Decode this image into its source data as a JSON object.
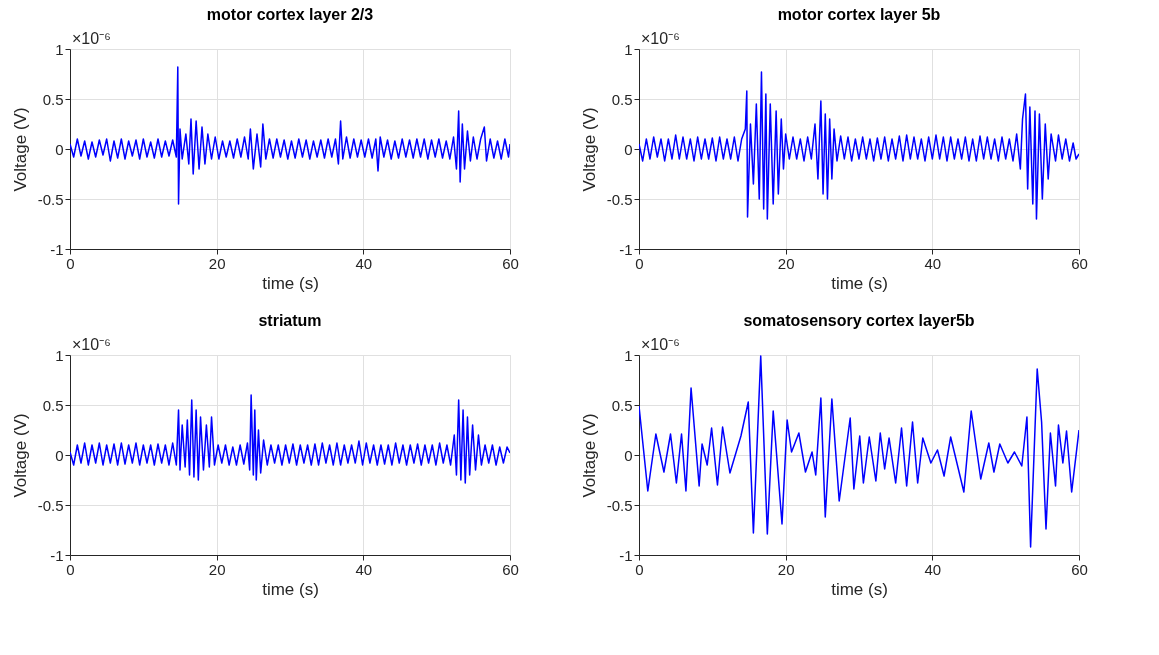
{
  "chart_data": [
    {
      "type": "line",
      "title": "motor cortex layer 2/3",
      "xlabel": "time (s)",
      "ylabel": "Voltage (V)",
      "annotations": [
        "×10⁻⁶"
      ],
      "grid": true,
      "xlim": [
        0,
        60
      ],
      "ylim": [
        -1,
        1
      ],
      "xticks": [
        0,
        20,
        40,
        60
      ],
      "yticks": [
        -1,
        -0.5,
        0,
        0.5,
        1
      ],
      "x": [
        0,
        0.5,
        1,
        1.5,
        2,
        2.5,
        3,
        3.5,
        4,
        4.5,
        5,
        5.5,
        6,
        6.5,
        7,
        7.5,
        8,
        8.5,
        9,
        9.5,
        10,
        10.5,
        11,
        11.5,
        12,
        12.5,
        13,
        13.5,
        14,
        14.5,
        14.7,
        14.8,
        15,
        15.3,
        15.8,
        16.2,
        16.5,
        16.8,
        17.2,
        17.6,
        18,
        18.4,
        18.8,
        19.3,
        19.8,
        20.3,
        20.8,
        21.3,
        21.8,
        22.3,
        22.8,
        23.3,
        23.8,
        24.3,
        24.6,
        25,
        25.5,
        26,
        26.3,
        26.7,
        27.2,
        27.7,
        28.2,
        28.7,
        29.2,
        29.7,
        30.2,
        30.7,
        31.2,
        31.7,
        32.2,
        32.7,
        33.2,
        33.7,
        34.2,
        34.7,
        35.2,
        35.7,
        36.2,
        36.6,
        36.9,
        37.2,
        37.7,
        38.2,
        38.7,
        39.2,
        39.7,
        40.2,
        40.7,
        41.2,
        41.7,
        42,
        42.3,
        42.8,
        43.3,
        43.8,
        44.3,
        44.8,
        45.3,
        45.8,
        46.3,
        46.8,
        47.3,
        47.8,
        48.3,
        48.8,
        49.3,
        49.8,
        50.3,
        50.8,
        51.3,
        51.8,
        52.3,
        52.7,
        53,
        53.2,
        53.5,
        53.8,
        54.2,
        54.6,
        55,
        55.5,
        56,
        56.5,
        56.8,
        57.3,
        57.8,
        58.3,
        58.8,
        59.3,
        59.8,
        60
      ],
      "series": [
        {
          "color": "#0000ff",
          "values": [
            0.05,
            -0.08,
            0.1,
            -0.07,
            0.08,
            -0.1,
            0.07,
            -0.08,
            0.09,
            -0.06,
            0.1,
            -0.12,
            0.08,
            -0.09,
            0.1,
            -0.1,
            0.08,
            -0.07,
            0.09,
            -0.1,
            0.1,
            -0.08,
            0.07,
            -0.09,
            0.1,
            -0.08,
            0.08,
            -0.07,
            0.09,
            -0.08,
            0.82,
            -0.55,
            0.2,
            -0.1,
            0.15,
            -0.15,
            0.3,
            -0.25,
            0.28,
            -0.2,
            0.22,
            -0.15,
            0.15,
            -0.1,
            0.12,
            -0.1,
            0.08,
            -0.08,
            0.08,
            -0.09,
            0.1,
            -0.08,
            0.12,
            -0.1,
            0.2,
            -0.2,
            0.15,
            -0.18,
            0.25,
            -0.1,
            0.1,
            -0.09,
            0.1,
            -0.08,
            0.09,
            -0.1,
            0.08,
            -0.09,
            0.1,
            -0.08,
            0.09,
            -0.1,
            0.08,
            -0.08,
            0.09,
            -0.09,
            0.1,
            -0.08,
            0.1,
            -0.15,
            0.28,
            -0.1,
            0.12,
            -0.09,
            0.1,
            -0.08,
            0.09,
            -0.08,
            0.1,
            -0.09,
            0.1,
            -0.22,
            0.12,
            -0.08,
            0.09,
            -0.1,
            0.08,
            -0.09,
            0.1,
            -0.08,
            0.09,
            -0.09,
            0.1,
            -0.08,
            0.1,
            -0.1,
            0.09,
            -0.08,
            0.1,
            -0.09,
            0.08,
            -0.1,
            0.12,
            -0.2,
            0.38,
            -0.33,
            0.25,
            -0.2,
            0.18,
            -0.12,
            0.12,
            -0.1,
            0.1,
            0.22,
            -0.12,
            0.1,
            -0.09,
            0.08,
            -0.1,
            0.1,
            -0.08,
            0.05
          ]
        }
      ]
    },
    {
      "type": "line",
      "title": "motor cortex layer 5b",
      "xlabel": "time (s)",
      "ylabel": "Voltage (V)",
      "annotations": [
        "×10⁻⁶"
      ],
      "grid": true,
      "xlim": [
        0,
        60
      ],
      "ylim": [
        -1,
        1
      ],
      "xticks": [
        0,
        20,
        40,
        60
      ],
      "yticks": [
        -1,
        -0.5,
        0,
        0.5,
        1
      ],
      "x": [
        0,
        0.5,
        1,
        1.5,
        2,
        2.5,
        3,
        3.5,
        4,
        4.5,
        5,
        5.5,
        6,
        6.5,
        7,
        7.5,
        8,
        8.5,
        9,
        9.5,
        10,
        10.5,
        11,
        11.5,
        12,
        12.5,
        13,
        13.5,
        14,
        14.5,
        14.7,
        14.8,
        15.2,
        15.6,
        16,
        16.4,
        16.7,
        17,
        17.3,
        17.5,
        17.9,
        18.3,
        18.7,
        19,
        19.4,
        19.7,
        20,
        20.5,
        21,
        21.5,
        22,
        22.5,
        23,
        23.5,
        24,
        24.4,
        24.8,
        25.1,
        25.4,
        25.7,
        26,
        26.3,
        26.6,
        27,
        27.5,
        28,
        28.5,
        29,
        29.5,
        30,
        30.5,
        31,
        31.5,
        32,
        32.5,
        33,
        33.5,
        34,
        34.5,
        35,
        35.5,
        36,
        36.5,
        37,
        37.5,
        38,
        38.5,
        39,
        39.5,
        40,
        40.5,
        41,
        41.5,
        42,
        42.5,
        43,
        43.5,
        44,
        44.5,
        45,
        45.5,
        46,
        46.5,
        47,
        47.5,
        48,
        48.5,
        49,
        49.5,
        50,
        50.5,
        51,
        51.5,
        52,
        52.3,
        52.7,
        53,
        53.3,
        53.7,
        54,
        54.2,
        54.6,
        55,
        55.4,
        55.8,
        56.2,
        56.8,
        57.2,
        57.7,
        58.2,
        58.7,
        59.2,
        59.6,
        60
      ],
      "series": [
        {
          "color": "#0000ff",
          "values": [
            0.05,
            -0.12,
            0.1,
            -0.1,
            0.12,
            -0.08,
            0.1,
            -0.12,
            0.1,
            -0.1,
            0.14,
            -0.1,
            0.12,
            -0.1,
            0.1,
            -0.12,
            0.12,
            -0.1,
            0.1,
            -0.1,
            0.11,
            -0.12,
            0.12,
            -0.1,
            0.1,
            -0.1,
            0.12,
            -0.12,
            0.1,
            0.2,
            0.58,
            -0.68,
            0.25,
            -0.35,
            0.45,
            -0.5,
            0.77,
            -0.6,
            0.55,
            -0.7,
            0.45,
            -0.55,
            0.38,
            -0.45,
            0.3,
            -0.2,
            0.15,
            -0.1,
            0.12,
            -0.1,
            0.1,
            -0.12,
            0.12,
            -0.1,
            0.25,
            -0.3,
            0.48,
            -0.45,
            0.35,
            -0.5,
            0.3,
            -0.3,
            0.2,
            -0.12,
            0.13,
            -0.1,
            0.12,
            -0.12,
            0.1,
            -0.1,
            0.12,
            -0.1,
            0.1,
            -0.12,
            0.11,
            -0.1,
            0.12,
            -0.12,
            0.1,
            -0.1,
            0.13,
            -0.12,
            0.14,
            -0.1,
            0.12,
            -0.1,
            0.1,
            -0.12,
            0.12,
            -0.1,
            0.14,
            -0.1,
            0.12,
            -0.12,
            0.12,
            -0.1,
            0.1,
            -0.1,
            0.12,
            -0.12,
            0.1,
            -0.12,
            0.13,
            -0.1,
            0.12,
            -0.1,
            0.1,
            -0.12,
            0.12,
            -0.1,
            0.1,
            -0.12,
            0.15,
            -0.2,
            0.3,
            0.55,
            -0.4,
            0.42,
            -0.55,
            0.38,
            -0.7,
            0.35,
            -0.5,
            0.25,
            -0.3,
            0.15,
            -0.12,
            0.14,
            -0.1,
            0.1,
            -0.12,
            0.06,
            -0.1,
            -0.05
          ]
        }
      ]
    },
    {
      "type": "line",
      "title": "striatum",
      "xlabel": "time (s)",
      "ylabel": "Voltage (V)",
      "annotations": [
        "×10⁻⁶"
      ],
      "grid": true,
      "xlim": [
        0,
        60
      ],
      "ylim": [
        -1,
        1
      ],
      "xticks": [
        0,
        20,
        40,
        60
      ],
      "yticks": [
        -1,
        -0.5,
        0,
        0.5,
        1
      ],
      "x": [
        0,
        0.5,
        1,
        1.5,
        2,
        2.5,
        3,
        3.5,
        4,
        4.5,
        5,
        5.5,
        6,
        6.5,
        7,
        7.5,
        8,
        8.5,
        9,
        9.5,
        10,
        10.5,
        11,
        11.5,
        12,
        12.5,
        13,
        13.5,
        14,
        14.5,
        14.8,
        15,
        15.3,
        15.7,
        16,
        16.3,
        16.6,
        16.9,
        17.2,
        17.5,
        17.8,
        18.2,
        18.6,
        19,
        19.3,
        19.7,
        20.2,
        20.7,
        21.2,
        21.7,
        22.2,
        22.7,
        23.2,
        23.7,
        24.2,
        24.5,
        24.7,
        25,
        25.2,
        25.4,
        25.7,
        26,
        26.4,
        26.9,
        27.4,
        27.9,
        28.4,
        28.9,
        29.4,
        29.9,
        30.4,
        30.9,
        31.4,
        31.9,
        32.4,
        32.9,
        33.4,
        33.9,
        34.4,
        34.9,
        35.4,
        35.9,
        36.4,
        36.9,
        37.4,
        37.9,
        38.4,
        38.9,
        39.4,
        39.9,
        40.4,
        40.9,
        41.4,
        41.9,
        42.4,
        42.9,
        43.4,
        43.9,
        44.4,
        44.9,
        45.4,
        45.9,
        46.4,
        46.9,
        47.4,
        47.9,
        48.4,
        48.9,
        49.4,
        49.9,
        50.4,
        50.9,
        51.4,
        51.9,
        52.4,
        52.7,
        53,
        53.3,
        53.6,
        53.9,
        54.2,
        54.5,
        54.9,
        55.3,
        55.7,
        56.1,
        56.6,
        57.1,
        57.6,
        58.1,
        58.6,
        59.1,
        59.6,
        60
      ],
      "series": [
        {
          "color": "#0000ff",
          "values": [
            0.03,
            -0.1,
            0.1,
            -0.08,
            0.12,
            -0.1,
            0.1,
            -0.08,
            0.12,
            -0.1,
            0.1,
            -0.08,
            0.11,
            -0.1,
            0.12,
            -0.09,
            0.1,
            -0.08,
            0.12,
            -0.1,
            0.1,
            -0.08,
            0.1,
            -0.1,
            0.11,
            -0.08,
            0.1,
            -0.1,
            0.12,
            -0.1,
            0.45,
            -0.15,
            0.3,
            -0.12,
            0.35,
            -0.2,
            0.55,
            -0.22,
            0.45,
            -0.25,
            0.38,
            -0.15,
            0.3,
            -0.12,
            0.38,
            -0.1,
            0.1,
            -0.08,
            0.1,
            -0.1,
            0.08,
            -0.1,
            0.1,
            -0.09,
            0.12,
            -0.15,
            0.6,
            -0.2,
            0.45,
            -0.25,
            0.25,
            -0.18,
            0.15,
            -0.1,
            0.1,
            -0.08,
            0.1,
            -0.1,
            0.1,
            -0.08,
            0.11,
            -0.1,
            0.1,
            -0.08,
            0.1,
            -0.1,
            0.11,
            -0.1,
            0.12,
            -0.08,
            0.1,
            -0.1,
            0.12,
            -0.1,
            0.1,
            -0.08,
            0.1,
            -0.08,
            0.14,
            -0.1,
            0.12,
            -0.08,
            0.1,
            -0.1,
            0.1,
            -0.09,
            0.1,
            -0.1,
            0.12,
            -0.08,
            0.1,
            -0.1,
            0.1,
            -0.08,
            0.11,
            -0.1,
            0.1,
            -0.08,
            0.1,
            -0.1,
            0.12,
            -0.08,
            0.1,
            -0.1,
            0.2,
            -0.2,
            0.55,
            -0.25,
            0.45,
            -0.28,
            0.38,
            -0.2,
            0.3,
            -0.15,
            0.2,
            -0.1,
            0.1,
            -0.08,
            0.1,
            -0.1,
            0.08,
            -0.08,
            0.08,
            0.02
          ]
        }
      ]
    },
    {
      "type": "line",
      "title": "somatosensory cortex layer5b",
      "xlabel": "time (s)",
      "ylabel": "Voltage (V)",
      "annotations": [
        "×10⁻⁶"
      ],
      "grid": true,
      "xlim": [
        0,
        60
      ],
      "ylim": [
        -1,
        1
      ],
      "xticks": [
        0,
        20,
        40,
        60
      ],
      "yticks": [
        -1,
        -0.5,
        0,
        0.5,
        1
      ],
      "x": [
        0,
        1.2,
        2.3,
        3.4,
        4.3,
        5.1,
        5.8,
        6.4,
        7.1,
        8.2,
        8.6,
        9.3,
        9.9,
        10.7,
        11.4,
        12.4,
        13.9,
        14.9,
        15.6,
        16.6,
        17.5,
        18.3,
        19.5,
        20.2,
        20.8,
        21.8,
        22.7,
        23.6,
        24.1,
        24.8,
        25.4,
        26.3,
        27.3,
        28.8,
        29.3,
        30.1,
        30.6,
        31.4,
        32.3,
        32.9,
        33.5,
        34.1,
        35.0,
        35.8,
        36.5,
        37.3,
        38.0,
        38.7,
        39.8,
        40.7,
        41.6,
        42.5,
        44.3,
        45.3,
        46.6,
        47.7,
        48.4,
        49.2,
        50.3,
        51.2,
        52.2,
        52.9,
        53.4,
        54.3,
        54.9,
        55.5,
        56.1,
        56.8,
        57.2,
        57.8,
        58.3,
        59.0,
        60
      ],
      "series": [
        {
          "color": "#0000ff",
          "values": [
            0.49,
            -0.36,
            0.21,
            -0.17,
            0.21,
            -0.28,
            0.21,
            -0.36,
            0.67,
            -0.31,
            0.11,
            -0.1,
            0.27,
            -0.3,
            0.28,
            -0.18,
            0.19,
            0.53,
            -0.78,
            0.99,
            -0.79,
            0.44,
            -0.69,
            0.35,
            0.03,
            0.22,
            -0.17,
            0.03,
            -0.2,
            0.57,
            -0.62,
            0.56,
            -0.46,
            0.37,
            -0.34,
            0.19,
            -0.28,
            0.18,
            -0.26,
            0.22,
            -0.14,
            0.17,
            -0.28,
            0.27,
            -0.31,
            0.33,
            -0.28,
            0.17,
            -0.08,
            0.05,
            -0.21,
            0.18,
            -0.37,
            0.44,
            -0.24,
            0.12,
            -0.17,
            0.11,
            -0.08,
            0.03,
            -0.11,
            0.38,
            -0.92,
            0.86,
            0.33,
            -0.74,
            0.22,
            -0.31,
            0.3,
            -0.08,
            0.24,
            -0.37,
            0.25
          ]
        }
      ]
    }
  ]
}
